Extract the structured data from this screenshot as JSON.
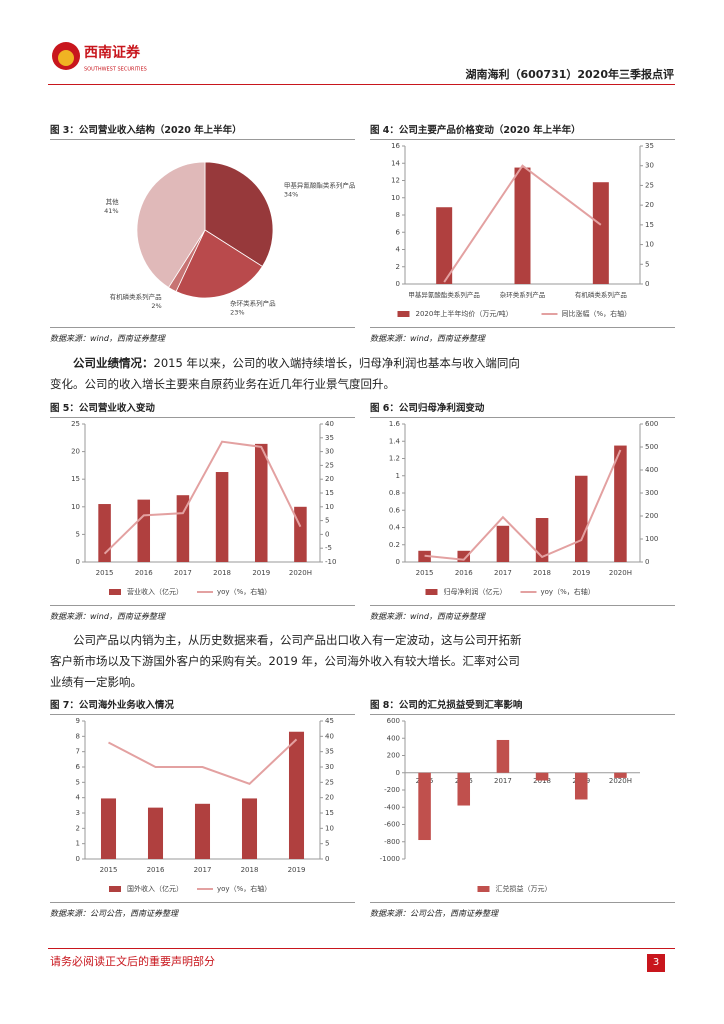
{
  "header": {
    "logo_text": "西南证券",
    "logo_sub": "SOUTHWEST SECURITIES",
    "title": "湖南海利（600731）2020年三季报点评"
  },
  "paragraphs": [
    {
      "lead": "公司业绩情况：",
      "text": "2015 年以来，公司的收入端持续增长，归母净利润也基本与收入端同向变化。公司的收入增长主要来自原药业务在近几年行业景气度回升。"
    },
    {
      "lead": "",
      "text": "公司产品以内销为主，从历史数据来看，公司产品出口收入有一定波动，这与公司开拓新客户新市场以及下游国外客户的采购有关。2019 年，公司海外收入有较大增长。汇率对公司业绩有一定影响。"
    }
  ],
  "chart_data": [
    {
      "type": "pie",
      "figure_title": "图 3：公司营业收入结构（2020 年上半年）",
      "source": "数据来源：wind，西南证券整理",
      "categories": [
        "甲基异氰酸酯类系列产品",
        "杂环类系列产品",
        "有机磷类系列产品",
        "其他"
      ],
      "values": [
        34,
        23,
        2,
        41
      ],
      "value_labels": [
        "34%",
        "23%",
        "2%",
        "41%"
      ],
      "colors": [
        "#97393b",
        "#b94a4c",
        "#c77373",
        "#e0b9b9"
      ]
    },
    {
      "type": "combo",
      "figure_title": "图 4：公司主要产品价格变动（2020 年上半年）",
      "source": "数据来源：wind，西南证券整理",
      "categories": [
        "甲基异氰酸酯类系列产品",
        "杂环类系列产品",
        "有机磷类系列产品"
      ],
      "series": [
        {
          "name": "2020年上半年均价（万元/吨）",
          "color": "#b0403f",
          "kind": "bar",
          "values": [
            8.9,
            13.5,
            11.8
          ]
        },
        {
          "name": "同比涨幅（%，右轴）",
          "color": "#e3a1a1",
          "kind": "line",
          "axis": "y2",
          "values": [
            0.5,
            30,
            15
          ]
        }
      ],
      "ylim": [
        0,
        16
      ],
      "yticks": [
        0,
        2,
        4,
        6,
        8,
        10,
        12,
        14,
        16
      ],
      "y2lim": [
        0,
        35
      ],
      "y2ticks": [
        0,
        5,
        10,
        15,
        20,
        25,
        30,
        35
      ]
    },
    {
      "type": "combo",
      "figure_title": "图 5：公司营业收入变动",
      "source": "数据来源：wind，西南证券整理",
      "categories": [
        "2015",
        "2016",
        "2017",
        "2018",
        "2019",
        "2020H"
      ],
      "series": [
        {
          "name": "营业收入（亿元）",
          "color": "#b0403f",
          "kind": "bar",
          "values": [
            10.5,
            11.3,
            12.1,
            16.3,
            21.4,
            10.0
          ]
        },
        {
          "name": "yoy（%，右轴）",
          "color": "#e3a1a1",
          "kind": "line",
          "axis": "y2",
          "values": [
            -7,
            6.9,
            7.7,
            33.6,
            31.7,
            2.8
          ]
        }
      ],
      "ylim": [
        0,
        25
      ],
      "yticks": [
        0,
        5,
        10,
        15,
        20,
        25
      ],
      "y2lim": [
        -10,
        40
      ],
      "y2ticks": [
        -10,
        -5,
        0,
        5,
        10,
        15,
        20,
        25,
        30,
        35,
        40
      ]
    },
    {
      "type": "combo",
      "figure_title": "图 6：公司归母净利润变动",
      "source": "数据来源：wind，西南证券整理",
      "categories": [
        "2015",
        "2016",
        "2017",
        "2018",
        "2019",
        "2020H"
      ],
      "series": [
        {
          "name": "归母净利润（亿元）",
          "color": "#b0403f",
          "kind": "bar",
          "values": [
            0.13,
            0.13,
            0.42,
            0.51,
            1.0,
            1.35
          ]
        },
        {
          "name": "yoy（%，右轴）",
          "color": "#e3a1a1",
          "kind": "line",
          "axis": "y2",
          "values": [
            27,
            10,
            195,
            22,
            95,
            487
          ]
        }
      ],
      "ylim": [
        0,
        1.6
      ],
      "yticks": [
        0,
        0.2,
        0.4,
        0.6,
        0.8,
        1,
        1.2,
        1.4,
        1.6
      ],
      "y2lim": [
        0,
        600
      ],
      "y2ticks": [
        0,
        100,
        200,
        300,
        400,
        500,
        600
      ]
    },
    {
      "type": "combo",
      "figure_title": "图 7：公司海外业务收入情况",
      "source": "数据来源：公司公告，西南证券整理",
      "categories": [
        "2015",
        "2016",
        "2017",
        "2018",
        "2019"
      ],
      "series": [
        {
          "name": "国外收入（亿元）",
          "color": "#b0403f",
          "kind": "bar",
          "values": [
            3.95,
            3.35,
            3.6,
            3.95,
            8.3
          ]
        },
        {
          "name": "yoy（%，右轴）",
          "color": "#e3a1a1",
          "kind": "line",
          "axis": "y2",
          "values": [
            38,
            30,
            30,
            24.5,
            39
          ]
        }
      ],
      "ylim": [
        0,
        9
      ],
      "yticks": [
        0,
        1,
        2,
        3,
        4,
        5,
        6,
        7,
        8,
        9
      ],
      "y2lim": [
        0,
        45
      ],
      "y2ticks": [
        0,
        5,
        10,
        15,
        20,
        25,
        30,
        35,
        40,
        45
      ]
    },
    {
      "type": "bar",
      "figure_title": "图 8：公司的汇兑损益受到汇率影响",
      "source": "数据来源：公司公告，西南证券整理",
      "categories": [
        "2015",
        "2016",
        "2017",
        "2018",
        "2019",
        "2020H"
      ],
      "series": [
        {
          "name": "汇兑损益（万元）",
          "color": "#c0504d",
          "kind": "bar",
          "values": [
            -780,
            -380,
            380,
            -90,
            -310,
            -60
          ]
        }
      ],
      "ylim": [
        -1000,
        600
      ],
      "yticks": [
        -1000,
        -800,
        -600,
        -400,
        -200,
        0,
        200,
        400,
        600
      ]
    }
  ],
  "footer": {
    "disclaimer": "请务必阅读正文后的重要声明部分",
    "page": "3"
  }
}
